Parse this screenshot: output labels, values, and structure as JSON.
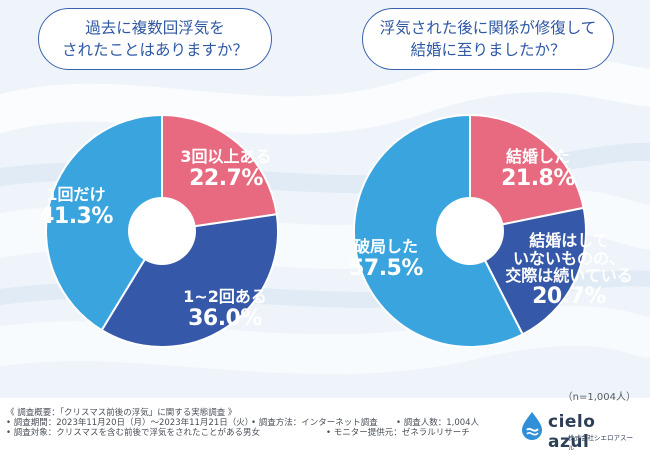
{
  "colors": {
    "pink": "#e86a80",
    "navy": "#3559a8",
    "sky": "#3aa4df",
    "bubble_border": "#3a63ad",
    "text_blue": "#2f58a3"
  },
  "chart_data": [
    {
      "type": "pie",
      "title_lines": [
        "過去に複数回浮気を",
        "されたことはありますか？"
      ],
      "slices": [
        {
          "label": "3回以上ある",
          "value": 22.7,
          "display": "22.7%",
          "color": "#e86a80"
        },
        {
          "label": "1~2回ある",
          "value": 36.0,
          "display": "36.0%",
          "color": "#3559a8"
        },
        {
          "label": "1回だけ",
          "value": 41.3,
          "display": "41.3%",
          "color": "#3aa4df"
        }
      ]
    },
    {
      "type": "pie",
      "title_lines": [
        "浮気された後に関係が修復して",
        "結婚に至りましたか？"
      ],
      "slices": [
        {
          "label": "結婚した",
          "value": 21.8,
          "display": "21.8%",
          "color": "#e86a80"
        },
        {
          "label": "結婚はしていないものの、交際は続いている",
          "label_lines": [
            "結婚はして",
            "いないものの、",
            "交際は続いている"
          ],
          "value": 20.7,
          "display": "20.7%",
          "color": "#3559a8"
        },
        {
          "label": "破局した",
          "value": 57.5,
          "display": "57.5%",
          "color": "#3aa4df"
        }
      ]
    }
  ],
  "sample_size": "（n=1,004人）",
  "footer": {
    "row1": "《 調査概要：「クリスマス前後の浮気」に関する実態調査 》",
    "row2a": "• 調査期間：2023年11月20日（月）～2023年11月21日（火）",
    "row2b": "• 調査方法：インターネット調査",
    "row2c": "• 調査人数：1,004人",
    "row3a": "• 調査対象：クリスマスを含む前後で浮気をされたことがある男女",
    "row3b": "• モニター提供元：ゼネラルリサーチ"
  },
  "logo": {
    "name": "cielo azul",
    "sub": "株式会社シエロアスール"
  }
}
